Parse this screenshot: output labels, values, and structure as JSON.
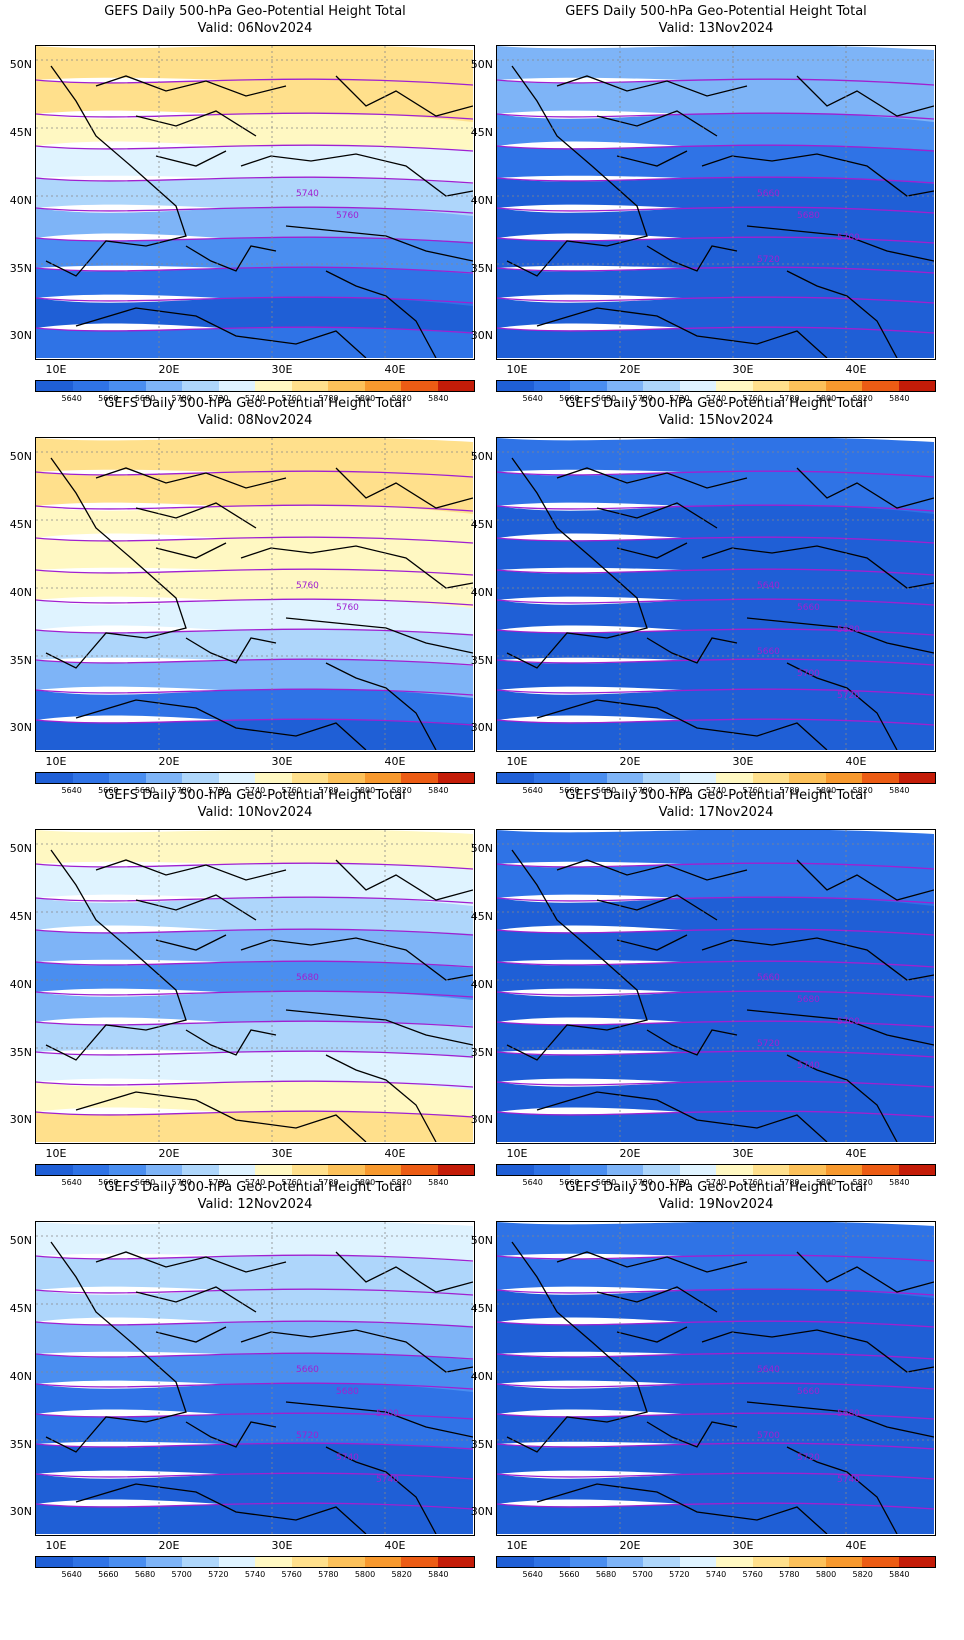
{
  "colorbar": {
    "labels": [
      "5640",
      "5660",
      "5680",
      "5700",
      "5720",
      "5740",
      "5760",
      "5780",
      "5800",
      "5820",
      "5840"
    ],
    "colors": [
      "#1f5fd6",
      "#2f73e6",
      "#4a8ef0",
      "#7eb4f7",
      "#aed6fb",
      "#dff3ff",
      "#fff8c2",
      "#ffe08c",
      "#fcc15a",
      "#f7992e",
      "#ec5c14",
      "#c41c08"
    ]
  },
  "axes": {
    "lat_labels": [
      "50N",
      "45N",
      "40N",
      "35N",
      "30N"
    ],
    "lon_labels": [
      "10E",
      "20E",
      "30E",
      "40E"
    ]
  },
  "panels": [
    {
      "title": "GEFS Daily 500-hPa Geo-Potential Height Total",
      "valid": "Valid: 06Nov2024",
      "contour_labels": [
        "5740",
        "5760"
      ],
      "color_levels": [
        7,
        7,
        6,
        5,
        4,
        3,
        2,
        1,
        0,
        1
      ]
    },
    {
      "title": "GEFS Daily 500-hPa Geo-Potential Height Total",
      "valid": "Valid: 13Nov2024",
      "contour_labels": [
        "5660",
        "5680",
        "5700",
        "5720"
      ],
      "color_levels": [
        3,
        3,
        2,
        1,
        0,
        0,
        0,
        0,
        0,
        0
      ]
    },
    {
      "title": "GEFS Daily 500-hPa Geo-Potential Height Total",
      "valid": "Valid: 08Nov2024",
      "contour_labels": [
        "5760",
        "5760"
      ],
      "color_levels": [
        7,
        7,
        6,
        6,
        6,
        5,
        4,
        3,
        1,
        0
      ]
    },
    {
      "title": "GEFS Daily 500-hPa Geo-Potential Height Total",
      "valid": "Valid: 15Nov2024",
      "contour_labels": [
        "5640",
        "5660",
        "5680",
        "5660",
        "5700",
        "5720"
      ],
      "color_levels": [
        1,
        1,
        0,
        0,
        0,
        0,
        0,
        0,
        0,
        0
      ]
    },
    {
      "title": "GEFS Daily 500-hPa Geo-Potential Height Total",
      "valid": "Valid: 10Nov2024",
      "contour_labels": [
        "5680"
      ],
      "color_levels": [
        6,
        5,
        4,
        3,
        2,
        3,
        4,
        5,
        6,
        7
      ]
    },
    {
      "title": "GEFS Daily 500-hPa Geo-Potential Height Total",
      "valid": "Valid: 17Nov2024",
      "contour_labels": [
        "5660",
        "5680",
        "5700",
        "5720",
        "5740"
      ],
      "color_levels": [
        1,
        1,
        0,
        0,
        0,
        0,
        0,
        0,
        0,
        0
      ]
    },
    {
      "title": "GEFS Daily 500-hPa Geo-Potential Height Total",
      "valid": "Valid: 12Nov2024",
      "contour_labels": [
        "5660",
        "5680",
        "5700",
        "5720",
        "5740",
        "5740"
      ],
      "color_levels": [
        5,
        4,
        4,
        3,
        2,
        1,
        1,
        0,
        0,
        0
      ]
    },
    {
      "title": "GEFS Daily 500-hPa Geo-Potential Height Total",
      "valid": "Valid: 19Nov2024",
      "contour_labels": [
        "5640",
        "5660",
        "5680",
        "5700",
        "5720",
        "5740"
      ],
      "color_levels": [
        1,
        1,
        0,
        0,
        0,
        0,
        0,
        0,
        0,
        0
      ]
    }
  ]
}
